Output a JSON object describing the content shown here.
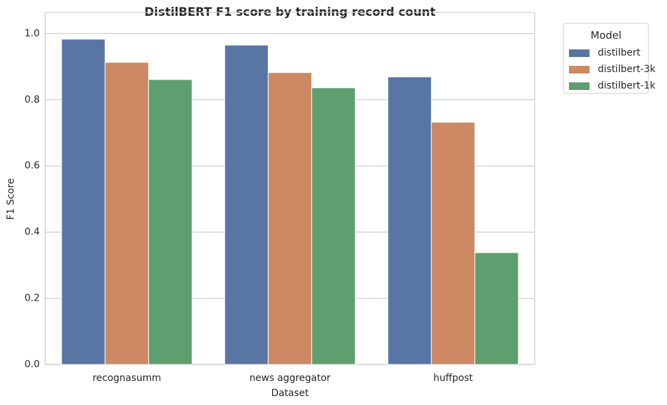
{
  "chart_data": {
    "type": "bar",
    "title": "DistilBERT F1 score by training record count",
    "x_label": "Dataset",
    "y_label": "F1 Score",
    "categories": [
      "recognasumm",
      "news aggregator",
      "huffpost"
    ],
    "series": [
      {
        "name": "distilbert",
        "color": "#5875a4",
        "values": [
          0.983,
          0.965,
          0.869
        ]
      },
      {
        "name": "distilbert-3k",
        "color": "#cc8963",
        "values": [
          0.913,
          0.882,
          0.732
        ]
      },
      {
        "name": "distilbert-1k",
        "color": "#5f9e6e",
        "values": [
          0.861,
          0.836,
          0.338
        ]
      }
    ],
    "ylim": [
      0,
      1.064
    ],
    "yticks": [
      {
        "value": 0,
        "label": "0.0"
      },
      0.2,
      0.4,
      0.6,
      0.8,
      {
        "value": 1,
        "label": "1.0"
      }
    ],
    "grid": true,
    "legend_title": "Model",
    "legend_position": "outside-right-top"
  }
}
